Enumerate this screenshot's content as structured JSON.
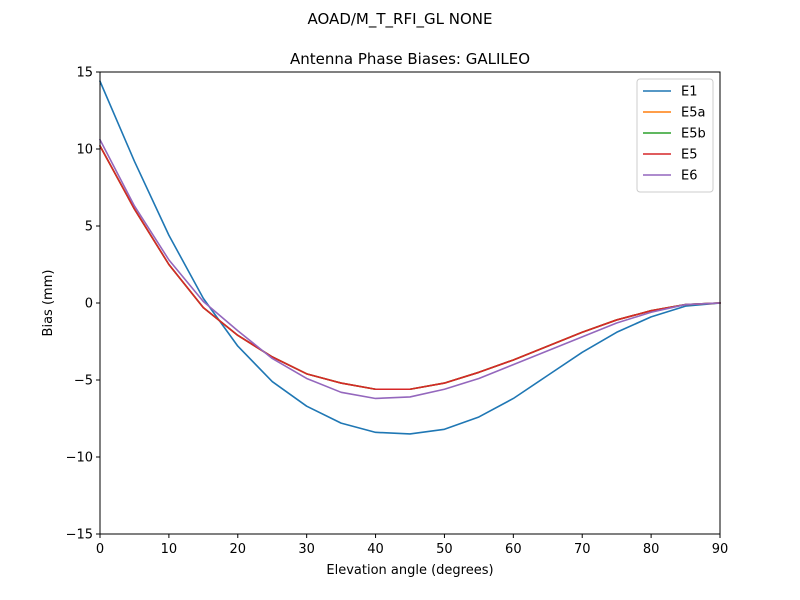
{
  "figure": {
    "suptitle": "AOAD/M_T_RFI_GL NONE"
  },
  "chart_data": {
    "type": "line",
    "title": "Antenna Phase Biases: GALILEO",
    "xlabel": "Elevation angle (degrees)",
    "ylabel": "Bias (mm)",
    "xlim": [
      0,
      90
    ],
    "ylim": [
      -15,
      15
    ],
    "xticks": [
      0,
      10,
      20,
      30,
      40,
      50,
      60,
      70,
      80,
      90
    ],
    "xtick_labels": [
      "0",
      "10",
      "20",
      "30",
      "40",
      "50",
      "60",
      "70",
      "80",
      "90"
    ],
    "yticks": [
      -15,
      -10,
      -5,
      0,
      5,
      10,
      15
    ],
    "ytick_labels": [
      "−15",
      "−10",
      "−5",
      "0",
      "5",
      "10",
      "15"
    ],
    "grid": false,
    "legend_position": "top-right",
    "x": [
      0,
      5,
      10,
      15,
      20,
      25,
      30,
      35,
      40,
      45,
      50,
      55,
      60,
      65,
      70,
      75,
      80,
      85,
      90
    ],
    "series": [
      {
        "name": "E1",
        "color": "#1f77b4",
        "values": [
          14.4,
          9.2,
          4.4,
          0.3,
          -2.8,
          -5.1,
          -6.7,
          -7.8,
          -8.4,
          -8.5,
          -8.2,
          -7.4,
          -6.2,
          -4.7,
          -3.2,
          -1.9,
          -0.9,
          -0.2,
          0.0
        ]
      },
      {
        "name": "E5a",
        "color": "#ff7f0e",
        "values": [
          10.2,
          6.1,
          2.5,
          -0.3,
          -2.1,
          -3.5,
          -4.6,
          -5.2,
          -5.6,
          -5.6,
          -5.2,
          -4.5,
          -3.7,
          -2.8,
          -1.9,
          -1.1,
          -0.5,
          -0.1,
          0.0
        ]
      },
      {
        "name": "E5b",
        "color": "#2ca02c",
        "values": [
          10.2,
          6.1,
          2.5,
          -0.3,
          -2.1,
          -3.5,
          -4.6,
          -5.2,
          -5.6,
          -5.6,
          -5.2,
          -4.5,
          -3.7,
          -2.8,
          -1.9,
          -1.1,
          -0.5,
          -0.1,
          0.0
        ]
      },
      {
        "name": "E5",
        "color": "#d62728",
        "values": [
          10.2,
          6.1,
          2.5,
          -0.3,
          -2.1,
          -3.5,
          -4.6,
          -5.2,
          -5.6,
          -5.6,
          -5.2,
          -4.5,
          -3.7,
          -2.8,
          -1.9,
          -1.1,
          -0.5,
          -0.1,
          0.0
        ]
      },
      {
        "name": "E6",
        "color": "#9467bd",
        "values": [
          10.6,
          6.3,
          2.8,
          0.1,
          -1.8,
          -3.6,
          -4.9,
          -5.8,
          -6.2,
          -6.1,
          -5.6,
          -4.9,
          -4.0,
          -3.1,
          -2.2,
          -1.3,
          -0.6,
          -0.1,
          0.0
        ]
      }
    ]
  }
}
